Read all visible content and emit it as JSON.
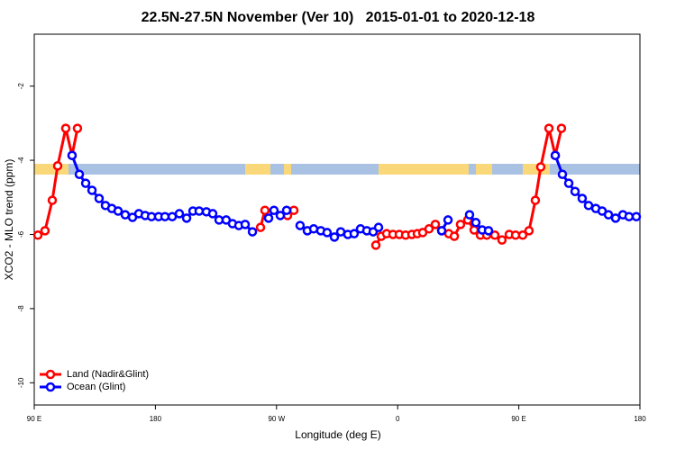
{
  "chart_data": {
    "type": "line",
    "title": "22.5N-27.5N November (Ver 10)   2015-01-01 to 2020-12-18",
    "xlabel": "Longitude (deg E)",
    "ylabel": "XCO2 - MLO trend (ppm)",
    "xlim": [
      90,
      540
    ],
    "ylim": [
      -10.6,
      -0.6
    ],
    "xticks": [
      {
        "value": 90,
        "label": "90 E"
      },
      180,
      {
        "value": 270,
        "label": "90 W"
      },
      {
        "value": 360,
        "label": "0"
      },
      {
        "value": 450,
        "label": "90 E"
      },
      {
        "value": 540,
        "label": "180"
      }
    ],
    "yticks": [
      -2,
      -4,
      -6,
      -8,
      -10
    ],
    "grid": false,
    "legend": "bottom-left",
    "series": [
      {
        "name": "Land (Nadir&Glint)",
        "color": "#ff0000",
        "x": [
          92.7,
          98.0,
          103.4,
          107.4,
          113.4,
          118.1,
          122.1,
          null,
          258.1,
          261.4,
          278.2,
          282.9,
          null,
          343.8,
          347.8,
          351.8,
          356.5,
          361.2,
          365.9,
          370.6,
          374.6,
          378.6,
          383.3,
          388.0,
          392.7,
          398.0,
          402.1,
          406.7,
          412.1,
          416.8,
          421.5,
          426.2,
          432.2,
          437.5,
          442.9,
          447.6,
          452.9,
          457.6,
          462.3,
          466.3,
          472.4,
          477.1,
          481.7
        ],
        "values": [
          -6.02,
          -5.9,
          -5.08,
          -4.15,
          -3.14,
          -3.87,
          -3.14,
          null,
          -5.81,
          -5.35,
          -5.49,
          -5.35,
          null,
          -6.29,
          -6.05,
          -5.98,
          -6.0,
          -6.0,
          -6.02,
          -6.0,
          -5.98,
          -5.95,
          -5.85,
          -5.73,
          -5.9,
          -5.98,
          -6.05,
          -5.73,
          -5.61,
          -5.88,
          -6.02,
          -6.02,
          -6.02,
          -6.15,
          -6.0,
          -6.02,
          -6.02,
          -5.9,
          -5.08,
          -4.18,
          -3.14,
          -3.87,
          -3.14
        ]
      },
      {
        "name": "Ocean (Glint)",
        "color": "#0000ff",
        "x": [
          118.1,
          123.5,
          128.2,
          132.9,
          138.2,
          142.9,
          147.6,
          152.3,
          157.6,
          163.0,
          167.7,
          172.4,
          177.1,
          182.4,
          187.1,
          192.5,
          197.8,
          203.2,
          207.9,
          212.5,
          217.9,
          222.6,
          227.3,
          232.6,
          237.3,
          242.0,
          246.7,
          252.1,
          null,
          264.1,
          268.1,
          272.8,
          277.5,
          null,
          287.5,
          292.9,
          297.6,
          302.9,
          307.6,
          313.0,
          317.7,
          323.0,
          327.7,
          332.4,
          337.1,
          341.8,
          345.8,
          null,
          392.7,
          397.4,
          null,
          413.4,
          418.1,
          422.8,
          427.5,
          null,
          477.1,
          482.4,
          487.1,
          491.8,
          497.1,
          501.8,
          507.2,
          511.9,
          516.6,
          521.9,
          527.3,
          531.9,
          537.3
        ],
        "values": [
          -3.87,
          -4.38,
          -4.62,
          -4.81,
          -5.03,
          -5.22,
          -5.3,
          -5.37,
          -5.47,
          -5.54,
          -5.44,
          -5.49,
          -5.52,
          -5.52,
          -5.52,
          -5.52,
          -5.44,
          -5.56,
          -5.37,
          -5.37,
          -5.39,
          -5.44,
          -5.61,
          -5.61,
          -5.71,
          -5.76,
          -5.73,
          -5.93,
          null,
          -5.56,
          -5.35,
          -5.49,
          -5.35,
          null,
          -5.76,
          -5.9,
          -5.85,
          -5.9,
          -5.95,
          -6.07,
          -5.93,
          -6.0,
          -5.98,
          -5.85,
          -5.9,
          -5.93,
          -5.81,
          null,
          -5.9,
          -5.61,
          null,
          -5.47,
          -5.68,
          -5.88,
          -5.9,
          null,
          -3.87,
          -4.38,
          -4.62,
          -4.84,
          -5.03,
          -5.22,
          -5.3,
          -5.37,
          -5.47,
          -5.56,
          -5.47,
          -5.52,
          -5.52
        ]
      }
    ]
  }
}
